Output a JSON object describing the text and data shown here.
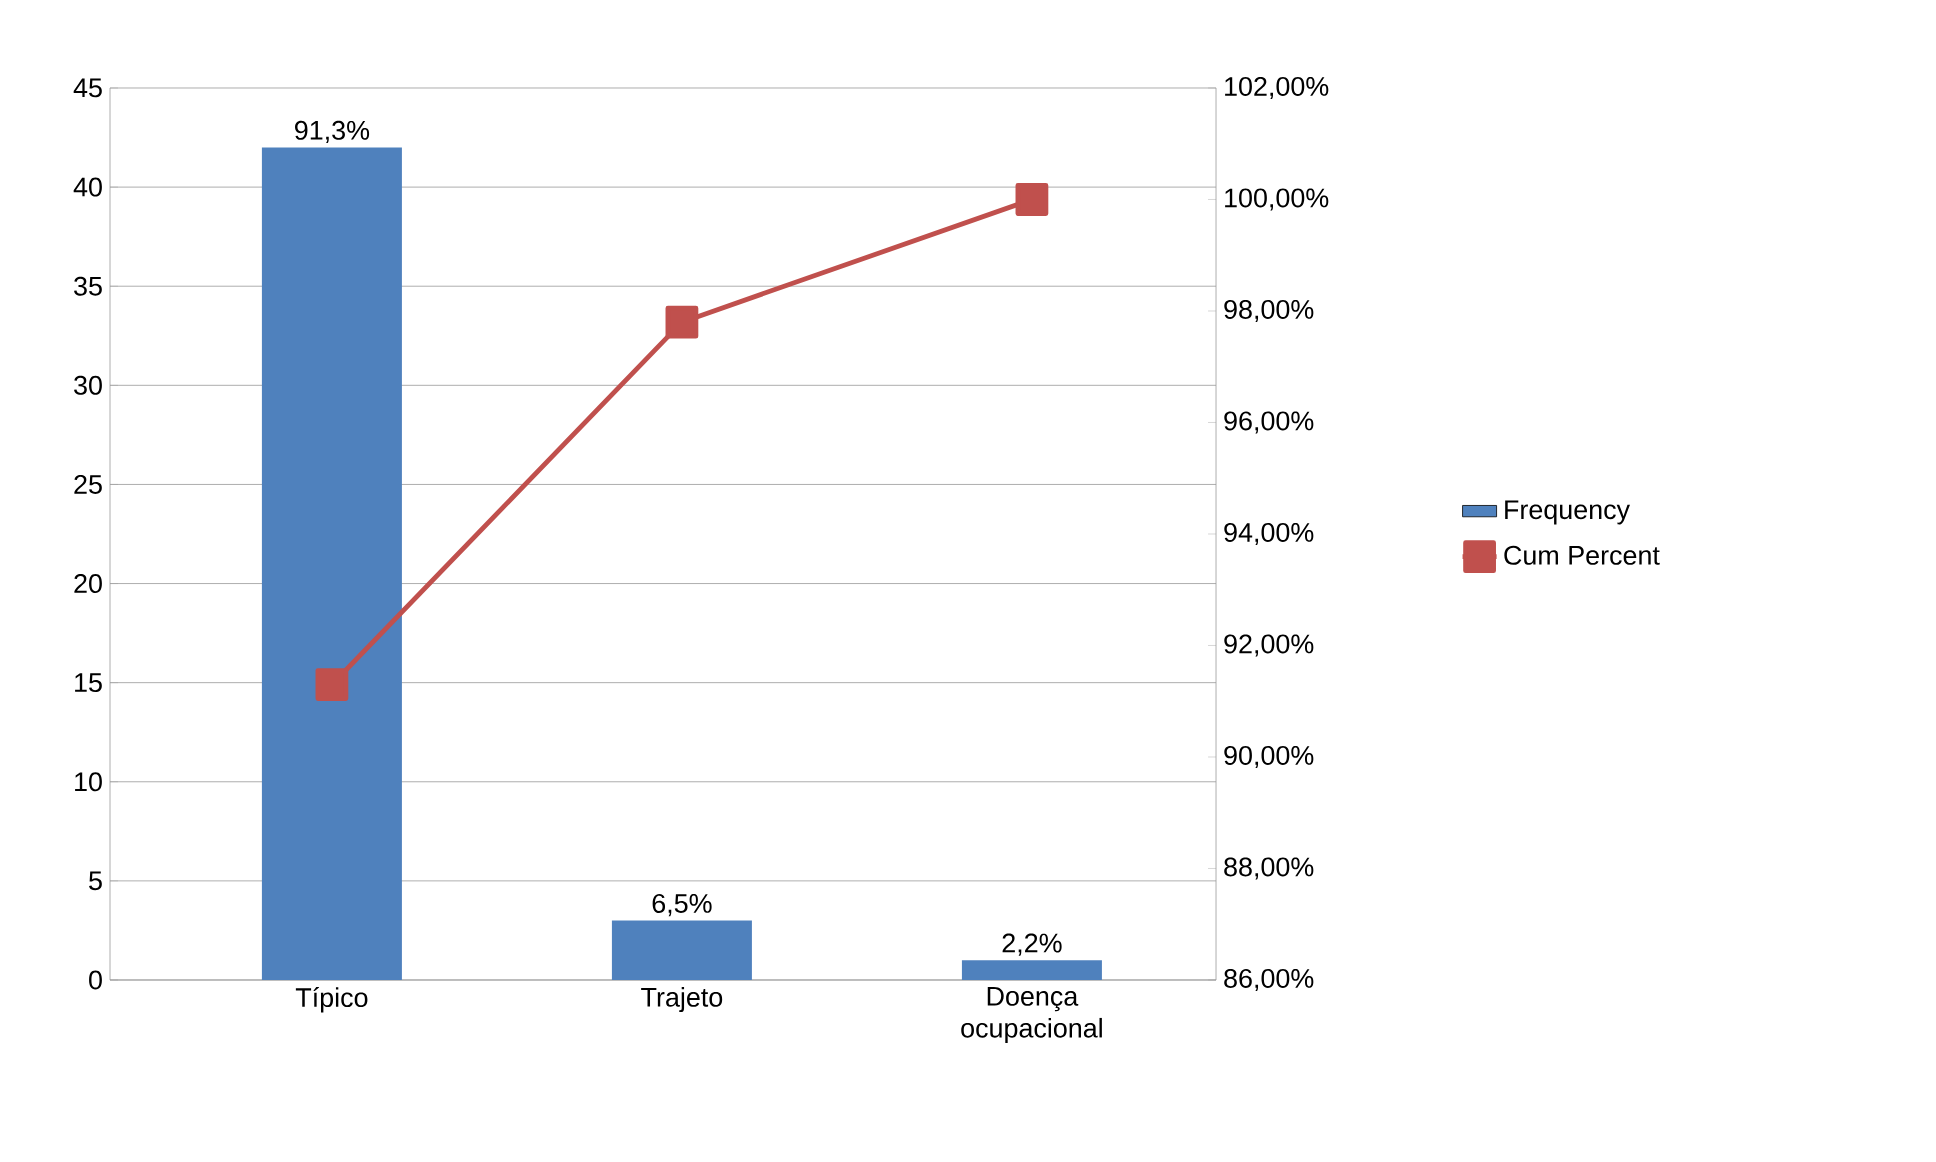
{
  "chart_data": {
    "type": "bar",
    "categories": [
      "Típico",
      "Trajeto",
      "Doença ocupacional"
    ],
    "series": [
      {
        "name": "Frequency",
        "color": "#4f81bd",
        "values": [
          42,
          3,
          1
        ]
      },
      {
        "name": "Cum Percent",
        "type": "line",
        "axis": "y2",
        "color": "#c0504d",
        "values": [
          91.3,
          97.8,
          100
        ]
      }
    ],
    "ylim": [
      0,
      45
    ],
    "yticks": [
      0,
      5,
      10,
      15,
      20,
      25,
      30,
      35,
      40,
      45
    ],
    "y2lim": [
      86,
      102
    ],
    "y2ticks": [
      {
        "value": 86,
        "label": "86,00%"
      },
      {
        "value": 88,
        "label": "88,00%"
      },
      {
        "value": 90,
        "label": "90,00%"
      },
      {
        "value": 92,
        "label": "92,00%"
      },
      {
        "value": 94,
        "label": "94,00%"
      },
      {
        "value": 96,
        "label": "96,00%"
      },
      {
        "value": 98,
        "label": "98,00%"
      },
      {
        "value": 100,
        "label": "100,00%"
      },
      {
        "value": 102,
        "label": "102,00%"
      }
    ],
    "annotations": [
      {
        "text": "91,3%",
        "x": "Típico",
        "y": 42
      },
      {
        "text": "6,5%",
        "x": "Trajeto",
        "y": 3
      },
      {
        "text": "2,2%",
        "x": "Doença ocupacional",
        "y": 1
      }
    ],
    "grid": "y",
    "legend": "right",
    "marker": "square"
  }
}
